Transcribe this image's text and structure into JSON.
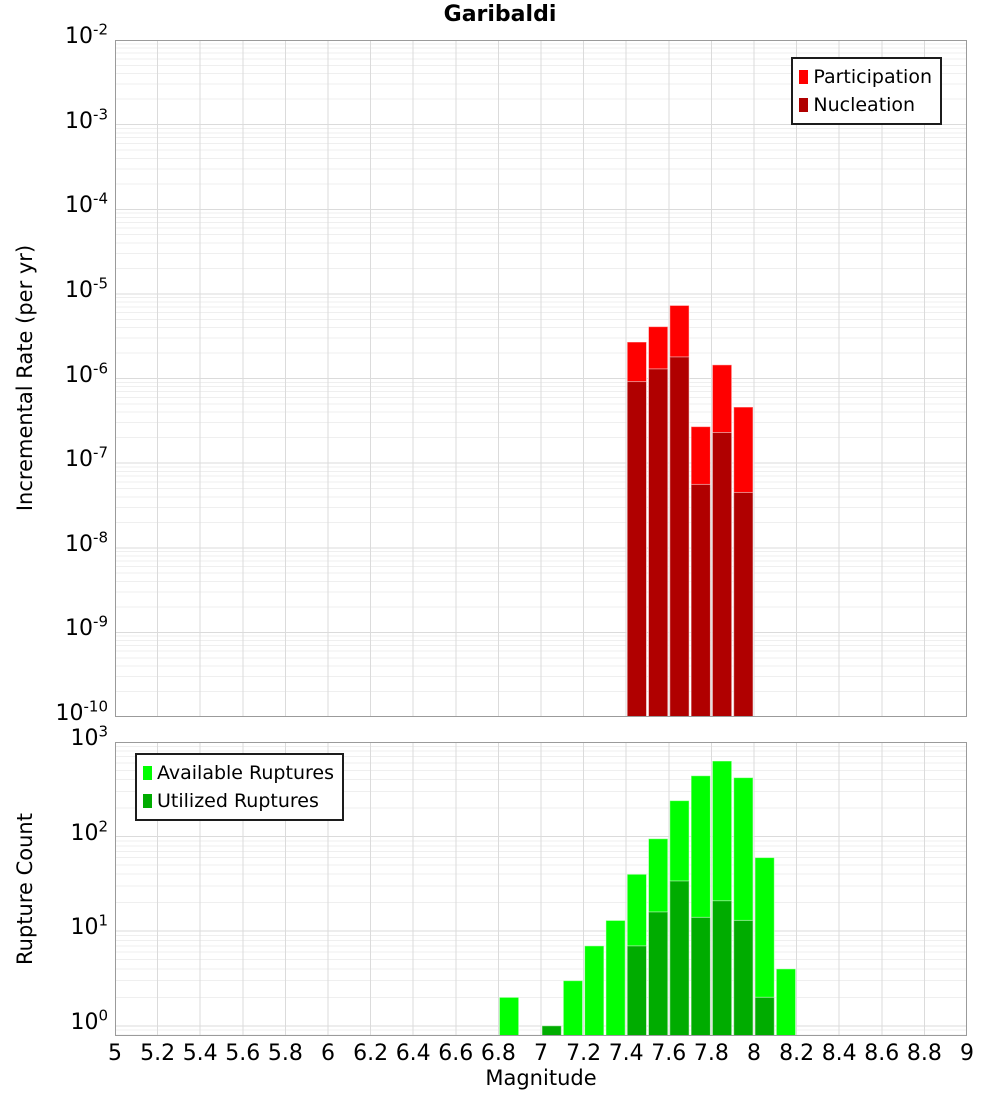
{
  "title": "Garibaldi",
  "x_axis": {
    "label": "Magnitude",
    "min": 5,
    "max": 9,
    "tick_step": 0.2,
    "tick_labels": [
      "5",
      "5.2",
      "5.4",
      "5.6",
      "5.8",
      "6",
      "6.2",
      "6.4",
      "6.6",
      "6.8",
      "7",
      "7.2",
      "7.4",
      "7.6",
      "7.8",
      "8",
      "8.2",
      "8.4",
      "8.6",
      "8.8",
      "9"
    ]
  },
  "colors": {
    "participation": "#FF0000",
    "nucleation": "#B00000",
    "available": "#00FF00",
    "utilized": "#00AC00",
    "grid_major": "#DBDBDB",
    "grid_minor": "#EFEFEF",
    "panel_border": "#9B9B9B",
    "bar_edge": "rgba(255,255,255,0.5)",
    "legend_border": "#1c1c1c",
    "text": "#000000"
  },
  "chart_data": [
    {
      "type": "bar",
      "panel": "top",
      "title": "Garibaldi",
      "xlabel": "Magnitude",
      "ylabel": "Incremental Rate (per yr)",
      "y_scale": "log",
      "ylim": [
        1e-10,
        0.01
      ],
      "y_tick_exponents": [
        -2,
        -3,
        -4,
        -5,
        -6,
        -7,
        -8,
        -9,
        -10
      ],
      "bin_width": 0.1,
      "x": [
        7.45,
        7.55,
        7.65,
        7.75,
        7.85,
        7.95
      ],
      "series": [
        {
          "name": "Participation",
          "color_key": "participation",
          "values": [
            2.7e-06,
            4.1e-06,
            7.3e-06,
            2.7e-07,
            1.45e-06,
            4.6e-07
          ]
        },
        {
          "name": "Nucleation",
          "color_key": "nucleation",
          "values": [
            9.2e-07,
            1.3e-06,
            1.8e-06,
            5.6e-08,
            2.3e-07,
            4.5e-08
          ]
        }
      ],
      "legend_position": "top-right",
      "legend": [
        {
          "label": "Participation",
          "color_key": "participation"
        },
        {
          "label": "Nucleation",
          "color_key": "nucleation"
        }
      ],
      "grid": true
    },
    {
      "type": "bar",
      "panel": "bottom",
      "xlabel": "Magnitude",
      "ylabel": "Rupture Count",
      "y_scale": "log",
      "ylim": [
        0.78,
        1000
      ],
      "y_tick_exponents": [
        3,
        2,
        1,
        0
      ],
      "bin_width": 0.1,
      "x": [
        6.85,
        7.05,
        7.15,
        7.25,
        7.35,
        7.45,
        7.55,
        7.65,
        7.75,
        7.85,
        7.95,
        8.05,
        8.15
      ],
      "series": [
        {
          "name": "Available Ruptures",
          "color_key": "available",
          "values": [
            2,
            1,
            3,
            7,
            13,
            40,
            95,
            240,
            440,
            630,
            420,
            60,
            4
          ]
        },
        {
          "name": "Utilized Ruptures",
          "color_key": "utilized",
          "values": [
            0,
            1,
            0,
            0,
            0,
            7,
            16,
            34,
            14,
            21,
            13,
            2,
            0
          ]
        }
      ],
      "legend_position": "top-left",
      "legend": [
        {
          "label": "Available Ruptures",
          "color_key": "available"
        },
        {
          "label": "Utilized Ruptures",
          "color_key": "utilized"
        }
      ],
      "grid": true
    }
  ]
}
